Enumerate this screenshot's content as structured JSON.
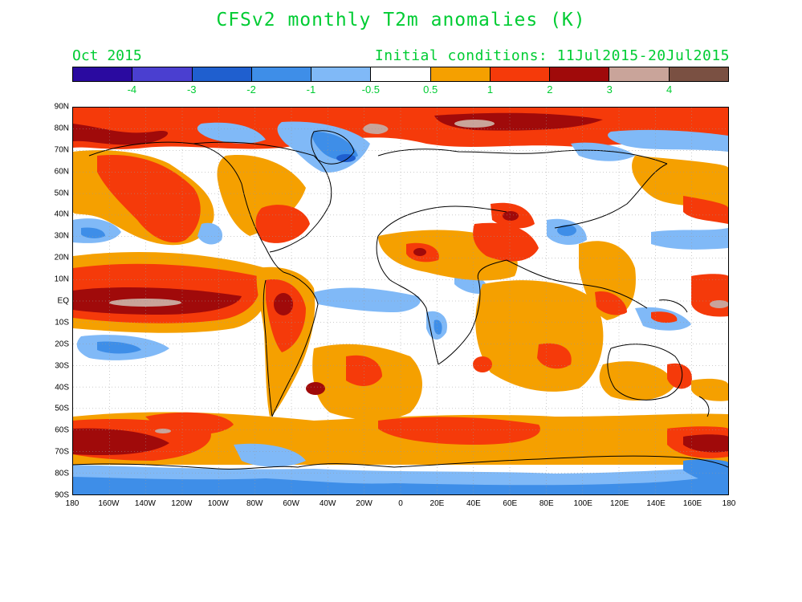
{
  "title": "CFSv2 monthly T2m anomalies (K)",
  "valid_month": "Oct 2015",
  "initial_conditions": "Initial conditions: 11Jul2015-20Jul2015",
  "colorbar": {
    "colors": [
      "#2a0aa0",
      "#4a3fd0",
      "#1f5fcf",
      "#3e8ee8",
      "#80b9f7",
      "#ffffff",
      "#f5a000",
      "#f53a0a",
      "#a00a0a",
      "#c9a49a",
      "#7a5042"
    ],
    "labels": [
      "-4",
      "-3",
      "-2",
      "-1",
      "-0.5",
      "0.5",
      "1",
      "2",
      "3",
      "4"
    ]
  },
  "map": {
    "lat_labels": [
      "90N",
      "80N",
      "70N",
      "60N",
      "50N",
      "40N",
      "30N",
      "20N",
      "10N",
      "EQ",
      "10S",
      "20S",
      "30S",
      "40S",
      "50S",
      "60S",
      "70S",
      "80S",
      "90S"
    ],
    "lon_labels": [
      "180",
      "160W",
      "140W",
      "120W",
      "100W",
      "80W",
      "60W",
      "40W",
      "20W",
      "0",
      "20E",
      "40E",
      "60E",
      "80E",
      "100E",
      "120E",
      "140E",
      "160E",
      "180"
    ]
  },
  "colors": {
    "text_accent": "#00cc33",
    "warm_0.5_1": "#f5a000",
    "warm_1_2": "#f53a0a",
    "warm_2_3": "#a00a0a",
    "warm_3_4": "#c9a49a",
    "cool_-0.5_-1": "#80b9f7",
    "cool_-1_-2": "#3e8ee8",
    "cool_-2_-3": "#1f5fcf",
    "cool_-3_-4": "#4a3fd0"
  }
}
